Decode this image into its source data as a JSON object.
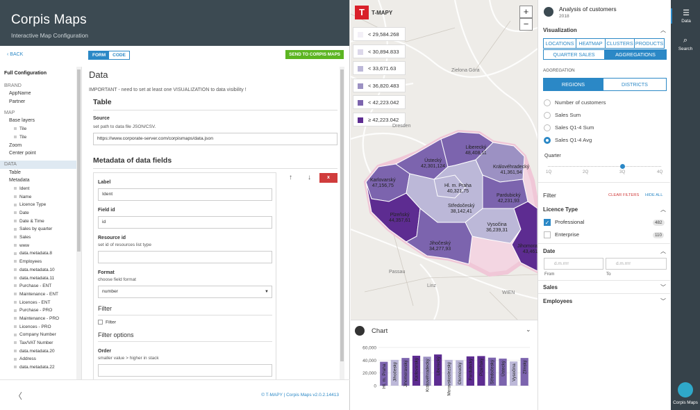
{
  "header": {
    "title": "Corpis Maps",
    "subtitle": "Interactive Map Configuration"
  },
  "toolbar": {
    "back": "BACK",
    "tabs": [
      "FORM",
      "CODE"
    ],
    "send": "SEND TO CORPIS MAPS"
  },
  "tree": [
    {
      "label": "Full Configuration",
      "kind": "h"
    },
    {
      "label": "BRAND",
      "kind": "sec"
    },
    {
      "label": "AppName",
      "kind": "l1"
    },
    {
      "label": "Partner",
      "kind": "l1"
    },
    {
      "label": "MAP",
      "kind": "sec"
    },
    {
      "label": "Base layers",
      "kind": "l1"
    },
    {
      "label": "Tile",
      "kind": "l2"
    },
    {
      "label": "Tile",
      "kind": "l2"
    },
    {
      "label": "Zoom",
      "kind": "l1"
    },
    {
      "label": "Center point",
      "kind": "l1"
    },
    {
      "label": "DATA",
      "kind": "sec sel"
    },
    {
      "label": "Table",
      "kind": "l1"
    },
    {
      "label": "Metadata",
      "kind": "l1"
    },
    {
      "label": "Ident",
      "kind": "l2"
    },
    {
      "label": "Name",
      "kind": "l2"
    },
    {
      "label": "Licence Type",
      "kind": "l2"
    },
    {
      "label": "Date",
      "kind": "l2"
    },
    {
      "label": "Date & Time",
      "kind": "l2"
    },
    {
      "label": "Sales by quarter",
      "kind": "l2"
    },
    {
      "label": "Sales",
      "kind": "l2"
    },
    {
      "label": "www",
      "kind": "l2"
    },
    {
      "label": "data.metadata.8",
      "kind": "l2"
    },
    {
      "label": "Employees",
      "kind": "l2"
    },
    {
      "label": "data.metadata.10",
      "kind": "l2"
    },
    {
      "label": "data.metadata.11",
      "kind": "l2"
    },
    {
      "label": "Purchase - ENT",
      "kind": "l2"
    },
    {
      "label": "Maintenance - ENT",
      "kind": "l2"
    },
    {
      "label": "Licences - ENT",
      "kind": "l2"
    },
    {
      "label": "Purchase - PRO",
      "kind": "l2"
    },
    {
      "label": "Maintenance - PRO",
      "kind": "l2"
    },
    {
      "label": "Licences - PRO",
      "kind": "l2"
    },
    {
      "label": "Company Number",
      "kind": "l2"
    },
    {
      "label": "Tax/VAT Number",
      "kind": "l2"
    },
    {
      "label": "data.metadata.20",
      "kind": "l2"
    },
    {
      "label": "Address",
      "kind": "l2"
    },
    {
      "label": "data.metadata.22",
      "kind": "l2"
    }
  ],
  "form": {
    "title": "Data",
    "notice": "IMPORTANT - need to set at least one VISUALIZATION to data visibility !",
    "table_heading": "Table",
    "source_label": "Source",
    "source_hint": "set path to data file JSON/CSV.",
    "source_value": "https://www.corporate-server.com/corpismaps/data.json",
    "metadata_heading": "Metadata of data fields",
    "label_label": "Label",
    "label_value": "Ident",
    "fieldid_label": "Field id",
    "fieldid_value": "id",
    "resid_label": "Resource id",
    "resid_hint": "set id of resources list type",
    "format_label": "Format",
    "format_hint": "choose field format",
    "format_value": "number",
    "filter_heading": "Filter",
    "filter_check": "Filter",
    "filteropt_heading": "Filter options",
    "order_label": "Order",
    "order_hint": "smaller value > higher in stack",
    "up": "↑",
    "down": "↓",
    "delete": "x"
  },
  "footer": {
    "back": "〈",
    "version": "© T-MAPY | Corpis Maps v2.0.2.14413"
  },
  "map": {
    "logo_letter": "T",
    "logo_name": "T-MAPY",
    "zoom_in": "+",
    "zoom_out": "−",
    "legend": [
      {
        "label": "< 29,584.268",
        "color": "#f3f0f7"
      },
      {
        "label": "< 30,894.833",
        "color": "#dcd8ea"
      },
      {
        "label": "< 33,671.63",
        "color": "#bcb8d8"
      },
      {
        "label": "< 36,820.483",
        "color": "#9c91c3"
      },
      {
        "label": "< 42,223.042",
        "color": "#7c64ae"
      },
      {
        "label": "≥ 42,223.042",
        "color": "#5d2c91"
      }
    ],
    "places": [
      "Zielona Góra",
      "Dresden",
      "Passau",
      "Linz",
      "WIEN"
    ],
    "regions": [
      {
        "name": "Liberecký",
        "value": "48,408,11"
      },
      {
        "name": "Ústecký",
        "value": "42,301,124"
      },
      {
        "name": "Královéhradecký",
        "value": "41,361,94"
      },
      {
        "name": "Karlovarský",
        "value": "47,156,75"
      },
      {
        "name": "Hl. m. Praha",
        "value": "40,321,75"
      },
      {
        "name": "Pardubický",
        "value": "42,231,93"
      },
      {
        "name": "Středočeský",
        "value": "38,142,41"
      },
      {
        "name": "Plzeňský",
        "value": "44,357,61"
      },
      {
        "name": "Vysočina",
        "value": "36,239,31"
      },
      {
        "name": "Jihočeský",
        "value": "34,277,93"
      },
      {
        "name": "Jihomoravský",
        "value": "43,461,8"
      }
    ]
  },
  "chart_panel": {
    "title": "Chart",
    "toggle": "⌄"
  },
  "chart_data": {
    "type": "bar",
    "categories": [
      "Hl. m. Praha",
      "Jihočeský",
      "Jihomoravský",
      "Karlovarský",
      "Královéhradecký",
      "Liberecký",
      "Moravskoslezský",
      "Olomoucký",
      "Pardubický",
      "Plzeňský",
      "Středočeský",
      "Ústecký",
      "Vysočina",
      "Zlínský"
    ],
    "values": [
      37500,
      40500,
      43500,
      47000,
      45500,
      49000,
      40500,
      40000,
      46000,
      46500,
      44000,
      42500,
      38000,
      43500
    ],
    "colors": [
      "#7c64ae",
      "#bcb8d8",
      "#7c64ae",
      "#5d2c91",
      "#9c91c3",
      "#5d2c91",
      "#bcb8d8",
      "#bcb8d8",
      "#5d2c91",
      "#5d2c91",
      "#7c64ae",
      "#7c64ae",
      "#bcb8d8",
      "#7c64ae"
    ],
    "yticks": [
      "60,000",
      "40,000",
      "20,000",
      "0"
    ],
    "ylim": [
      0,
      60000
    ]
  },
  "right": {
    "title": "Analysis of customers",
    "year": "2018",
    "visualization": "Visualization",
    "tabs1": [
      "LOCATIONS",
      "HEATMAP",
      "CLUSTERS",
      "PRODUCTS"
    ],
    "tabs2": [
      "QUARTER SALES",
      "AGGREGATIONS"
    ],
    "aggregation": "AGGREGATION",
    "tabs3": [
      "REGIONS",
      "DISTRICTS"
    ],
    "radios": [
      "Number of customers",
      "Sales Sum",
      "Sales Q1-4 Sum",
      "Sales Q1-4 Avg"
    ],
    "quarter": "Quarter",
    "quarters": [
      "1Q",
      "2Q",
      "3Q",
      "4Q"
    ],
    "quarter_selected": "3Q",
    "filter": "Filter",
    "clear": "CLEAR FILTERS",
    "hide": "HIDE ALL",
    "licence": "Licence Type",
    "lic_items": [
      {
        "label": "Professional",
        "count": "482"
      },
      {
        "label": "Enterprise",
        "count": "110"
      }
    ],
    "date": "Date",
    "date_placeholder": "d.m.rrrr",
    "from": "From",
    "to": "To",
    "sales": "Sales",
    "employees": "Employees"
  },
  "nav": {
    "data": "Data",
    "search": "Search",
    "brand": "Corpis Maps"
  }
}
